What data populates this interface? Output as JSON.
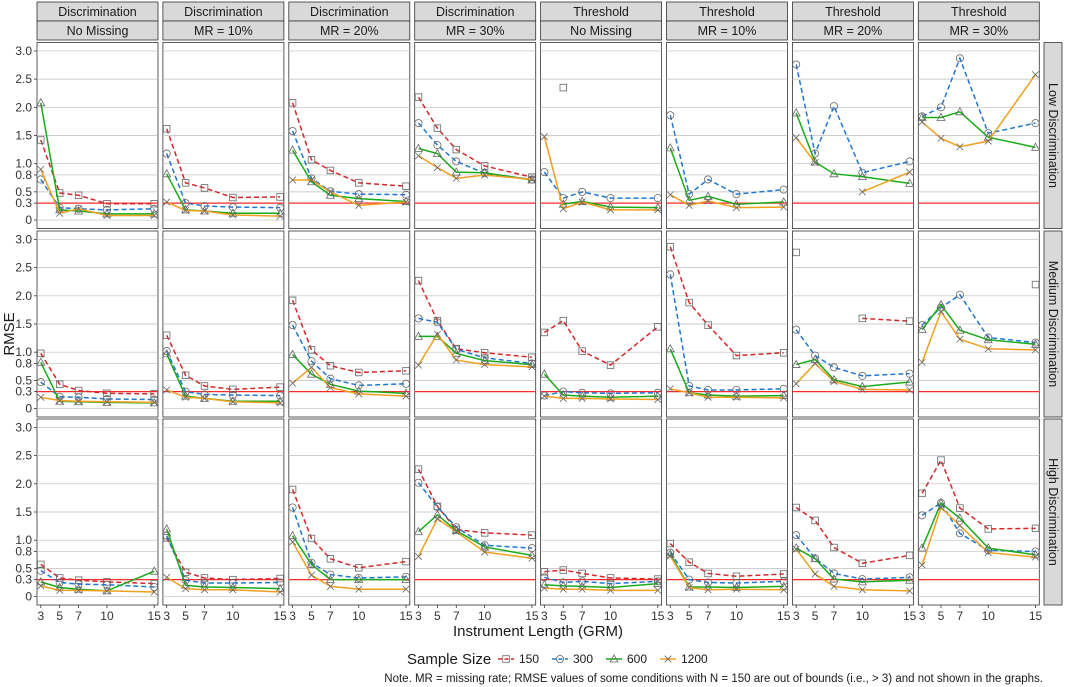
{
  "chart_data": {
    "type": "line",
    "ylabel": "RMSE",
    "xlabel": "Instrument Length (GRM)",
    "x": [
      3,
      5,
      7,
      10,
      15
    ],
    "x_ticks": [
      3,
      5,
      7,
      10,
      15
    ],
    "y_ticks": [
      0,
      0.3,
      0.5,
      0.8,
      1.0,
      1.5,
      2.0,
      2.5,
      3.0
    ],
    "y_tick_labels": [
      "0",
      "0.3",
      "0.5",
      "0.8",
      "1.0",
      "1.5",
      "2.0",
      "2.5",
      "3.0"
    ],
    "ylim": [
      -0.15,
      3.15
    ],
    "reference_line": 0.3,
    "grid": true,
    "column_facets": [
      {
        "top": "Discrimination",
        "bottom": "No Missing"
      },
      {
        "top": "Discrimination",
        "bottom": "MR = 10%"
      },
      {
        "top": "Discrimination",
        "bottom": "MR = 20%"
      },
      {
        "top": "Discrimination",
        "bottom": "MR = 30%"
      },
      {
        "top": "Threshold",
        "bottom": "No Missing"
      },
      {
        "top": "Threshold",
        "bottom": "MR = 10%"
      },
      {
        "top": "Threshold",
        "bottom": "MR = 20%"
      },
      {
        "top": "Threshold",
        "bottom": "MR = 30%"
      }
    ],
    "row_facets": [
      "Low Discrimination",
      "Medium Discrimination",
      "High Discrimination"
    ],
    "legend": {
      "title": "Sample Size",
      "placement": "bottom",
      "entries": [
        {
          "name": "150",
          "color": "#d62728",
          "dash": "dashed",
          "marker": "square"
        },
        {
          "name": "300",
          "color": "#1f77d4",
          "dash": "dashed",
          "marker": "circle"
        },
        {
          "name": "600",
          "color": "#1aab1a",
          "dash": "solid",
          "marker": "triangle"
        },
        {
          "name": "1200",
          "color": "#f0a020",
          "dash": "solid",
          "marker": "x"
        }
      ]
    },
    "panels": [
      [
        [
          [
            1.42,
            0.48,
            0.44,
            0.29,
            0.29
          ],
          [
            0.72,
            0.22,
            0.2,
            0.18,
            0.2
          ],
          [
            2.08,
            0.18,
            0.16,
            0.11,
            0.11
          ],
          [
            0.9,
            0.12,
            0.2,
            0.08,
            0.08
          ]
        ],
        [
          [
            1.62,
            0.66,
            0.57,
            0.4,
            0.41
          ],
          [
            1.18,
            0.3,
            0.25,
            0.23,
            0.22
          ],
          [
            0.82,
            0.18,
            0.16,
            0.12,
            0.12
          ],
          [
            0.32,
            0.17,
            0.16,
            0.09,
            0.07
          ]
        ],
        [
          [
            2.08,
            1.07,
            0.88,
            0.66,
            0.6
          ],
          [
            1.58,
            0.74,
            0.51,
            0.46,
            0.45
          ],
          [
            1.24,
            0.68,
            0.44,
            0.38,
            0.33
          ],
          [
            0.71,
            0.71,
            0.5,
            0.26,
            0.32
          ]
        ],
        [
          [
            2.18,
            1.63,
            1.25,
            0.96,
            0.76
          ],
          [
            1.72,
            1.33,
            1.04,
            0.83,
            0.72
          ],
          [
            1.27,
            1.18,
            0.85,
            0.84,
            0.71
          ],
          [
            1.14,
            0.93,
            0.74,
            0.8,
            0.72
          ]
        ],
        [
          [
            null,
            2.35,
            null,
            null,
            null
          ],
          [
            0.85,
            0.39,
            0.5,
            0.39,
            0.39
          ],
          [
            null,
            0.28,
            0.33,
            0.23,
            0.22
          ],
          [
            1.48,
            0.2,
            0.32,
            0.18,
            0.18
          ]
        ],
        [
          [
            null,
            null,
            null,
            null,
            null
          ],
          [
            1.86,
            0.46,
            0.72,
            0.46,
            0.54
          ],
          [
            1.28,
            0.35,
            0.42,
            0.28,
            0.32
          ],
          [
            0.45,
            0.26,
            0.34,
            0.22,
            0.23
          ]
        ],
        [
          [
            null,
            null,
            null,
            null,
            null
          ],
          [
            2.76,
            1.18,
            2.02,
            0.84,
            1.04
          ],
          [
            1.9,
            1.03,
            0.82,
            0.77,
            0.65
          ],
          [
            1.46,
            1.02,
            null,
            0.5,
            0.85
          ]
        ],
        [
          [
            null,
            null,
            null,
            null,
            null
          ],
          [
            1.84,
            2.0,
            2.87,
            1.54,
            1.72
          ],
          [
            1.82,
            1.82,
            1.92,
            1.47,
            1.29
          ],
          [
            1.74,
            1.45,
            1.3,
            1.4,
            2.58
          ]
        ]
      ],
      [
        [
          [
            0.98,
            0.43,
            0.32,
            0.27,
            0.26
          ],
          [
            0.47,
            0.21,
            0.2,
            0.17,
            0.16
          ],
          [
            0.82,
            0.13,
            0.12,
            0.11,
            0.1
          ],
          [
            0.2,
            0.14,
            0.13,
            0.12,
            0.11
          ]
        ],
        [
          [
            1.3,
            0.59,
            0.4,
            0.34,
            0.38
          ],
          [
            1.02,
            0.3,
            0.25,
            0.24,
            0.23
          ],
          [
            0.97,
            0.22,
            0.18,
            0.13,
            0.13
          ],
          [
            0.33,
            0.2,
            0.18,
            0.12,
            0.1
          ]
        ],
        [
          [
            1.92,
            1.04,
            0.76,
            0.64,
            0.67
          ],
          [
            1.48,
            0.84,
            0.53,
            0.41,
            0.44
          ],
          [
            0.96,
            0.61,
            0.43,
            0.31,
            0.27
          ],
          [
            0.45,
            0.73,
            0.37,
            0.26,
            0.22
          ]
        ],
        [
          [
            2.27,
            1.56,
            1.06,
            0.99,
            0.91
          ],
          [
            1.6,
            1.53,
            1.05,
            0.9,
            0.8
          ],
          [
            1.28,
            1.28,
            0.98,
            0.85,
            0.78
          ],
          [
            0.77,
            1.32,
            0.86,
            0.78,
            0.74
          ]
        ],
        [
          [
            1.35,
            1.56,
            1.02,
            0.77,
            1.45
          ],
          [
            0.23,
            0.3,
            0.28,
            0.27,
            0.28
          ],
          [
            0.61,
            0.24,
            0.22,
            0.2,
            0.22
          ],
          [
            0.22,
            0.18,
            0.18,
            0.17,
            0.16
          ]
        ],
        [
          [
            2.87,
            1.88,
            1.48,
            0.94,
            0.99
          ],
          [
            2.38,
            0.4,
            0.33,
            0.33,
            0.35
          ],
          [
            1.06,
            0.28,
            0.24,
            0.22,
            0.23
          ],
          [
            0.35,
            0.28,
            0.2,
            0.2,
            0.19
          ]
        ],
        [
          [
            2.77,
            null,
            null,
            1.6,
            1.55
          ],
          [
            1.4,
            0.94,
            0.73,
            0.58,
            0.62
          ],
          [
            0.78,
            0.87,
            0.51,
            0.39,
            0.47
          ],
          [
            0.44,
            0.8,
            0.48,
            0.34,
            0.33
          ]
        ],
        [
          [
            null,
            null,
            null,
            null,
            2.2
          ],
          [
            1.48,
            1.79,
            2.02,
            1.26,
            1.17
          ],
          [
            1.4,
            1.84,
            1.39,
            1.22,
            1.14
          ],
          [
            0.82,
            1.72,
            1.23,
            1.06,
            1.04
          ]
        ]
      ],
      [
        [
          [
            0.57,
            0.33,
            0.29,
            0.26,
            0.23
          ],
          [
            0.46,
            0.25,
            0.22,
            0.21,
            0.17
          ],
          [
            0.26,
            0.16,
            0.13,
            0.1,
            0.45
          ],
          [
            0.19,
            0.11,
            0.11,
            0.1,
            0.08
          ]
        ],
        [
          [
            1.04,
            0.43,
            0.33,
            0.3,
            0.32
          ],
          [
            1.08,
            0.29,
            0.24,
            0.24,
            0.25
          ],
          [
            1.2,
            0.2,
            0.17,
            0.16,
            0.14
          ],
          [
            0.34,
            0.14,
            0.12,
            0.12,
            0.08
          ]
        ],
        [
          [
            1.9,
            1.03,
            0.67,
            0.51,
            0.62
          ],
          [
            1.58,
            0.6,
            0.39,
            0.33,
            0.35
          ],
          [
            1.08,
            0.57,
            0.3,
            0.3,
            0.3
          ],
          [
            0.97,
            0.38,
            0.18,
            0.13,
            0.13
          ]
        ],
        [
          [
            2.26,
            1.6,
            1.19,
            1.13,
            1.09
          ],
          [
            2.02,
            1.59,
            1.23,
            0.91,
            0.86
          ],
          [
            1.15,
            1.45,
            1.17,
            0.88,
            0.73
          ],
          [
            0.71,
            1.38,
            1.15,
            0.79,
            0.68
          ]
        ],
        [
          [
            0.44,
            0.47,
            0.41,
            0.33,
            0.31
          ],
          [
            0.34,
            0.25,
            0.27,
            0.23,
            0.27
          ],
          [
            0.21,
            0.19,
            0.18,
            0.16,
            0.23
          ],
          [
            0.15,
            0.13,
            0.13,
            0.11,
            0.11
          ]
        ],
        [
          [
            0.94,
            0.61,
            0.41,
            0.36,
            0.4
          ],
          [
            0.78,
            0.3,
            0.25,
            0.24,
            0.27
          ],
          [
            0.75,
            0.17,
            0.17,
            0.16,
            0.18
          ],
          [
            0.72,
            0.16,
            0.12,
            0.13,
            0.12
          ]
        ],
        [
          [
            1.58,
            1.35,
            0.87,
            0.59,
            0.73
          ],
          [
            1.09,
            0.68,
            0.41,
            0.31,
            0.34
          ],
          [
            0.86,
            0.67,
            0.31,
            0.26,
            0.29
          ],
          [
            0.84,
            0.4,
            0.18,
            0.12,
            0.1
          ]
        ],
        [
          [
            1.83,
            2.42,
            1.57,
            1.2,
            1.21
          ],
          [
            1.44,
            1.66,
            1.12,
            0.82,
            0.8
          ],
          [
            0.86,
            1.66,
            1.39,
            0.86,
            0.74
          ],
          [
            0.56,
            1.58,
            1.26,
            0.78,
            0.7
          ]
        ]
      ]
    ]
  },
  "note": "Note. MR = missing rate; RMSE values of some conditions with N = 150 are out of bounds (i.e., > 3) and not shown in the graphs."
}
